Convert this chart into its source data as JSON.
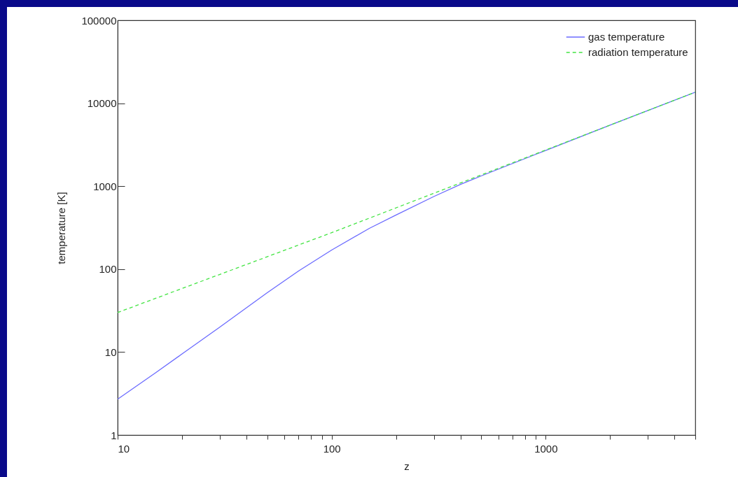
{
  "chart_data": {
    "type": "line",
    "xlabel": "z",
    "ylabel": "temperature [K]",
    "log": "xy",
    "grid": false,
    "legend": "top right",
    "xlim": [
      10,
      5000
    ],
    "ylim": [
      1,
      100000
    ],
    "xticks": [
      10,
      {
        "value": 20,
        "label": null
      },
      {
        "value": 30,
        "label": null
      },
      {
        "value": 40,
        "label": null
      },
      {
        "value": 50,
        "label": null
      },
      {
        "value": 60,
        "label": null
      },
      {
        "value": 70,
        "label": null
      },
      {
        "value": 80,
        "label": null
      },
      {
        "value": 90,
        "label": null
      },
      100,
      {
        "value": 200,
        "label": null
      },
      {
        "value": 300,
        "label": null
      },
      {
        "value": 400,
        "label": null
      },
      {
        "value": 500,
        "label": null
      },
      {
        "value": 600,
        "label": null
      },
      {
        "value": 700,
        "label": null
      },
      {
        "value": 800,
        "label": null
      },
      {
        "value": 900,
        "label": null
      },
      1000,
      {
        "value": 2000,
        "label": null
      },
      {
        "value": 3000,
        "label": null
      },
      {
        "value": 4000,
        "label": null
      },
      {
        "value": 5000,
        "label": null
      }
    ],
    "yticks": [
      1,
      10,
      100,
      1000,
      10000,
      100000
    ],
    "series": [
      {
        "name": "gas temperature",
        "color": "#6b6bff",
        "line_style": "solid",
        "x": [
          10,
          15,
          20,
          30,
          50,
          70,
          100,
          150,
          200,
          300,
          400,
          500,
          1000,
          2000,
          5000
        ],
        "values": [
          2.7,
          5.6,
          9.5,
          20,
          52,
          95,
          170,
          310,
          450,
          750,
          1050,
          1330,
          2700,
          5450,
          13600
        ]
      },
      {
        "name": "radiation temperature",
        "color": "#44e444",
        "line_style": "dashed",
        "x": [
          10,
          100,
          1000,
          5000
        ],
        "values": [
          30,
          275,
          2730,
          13600
        ]
      }
    ]
  }
}
